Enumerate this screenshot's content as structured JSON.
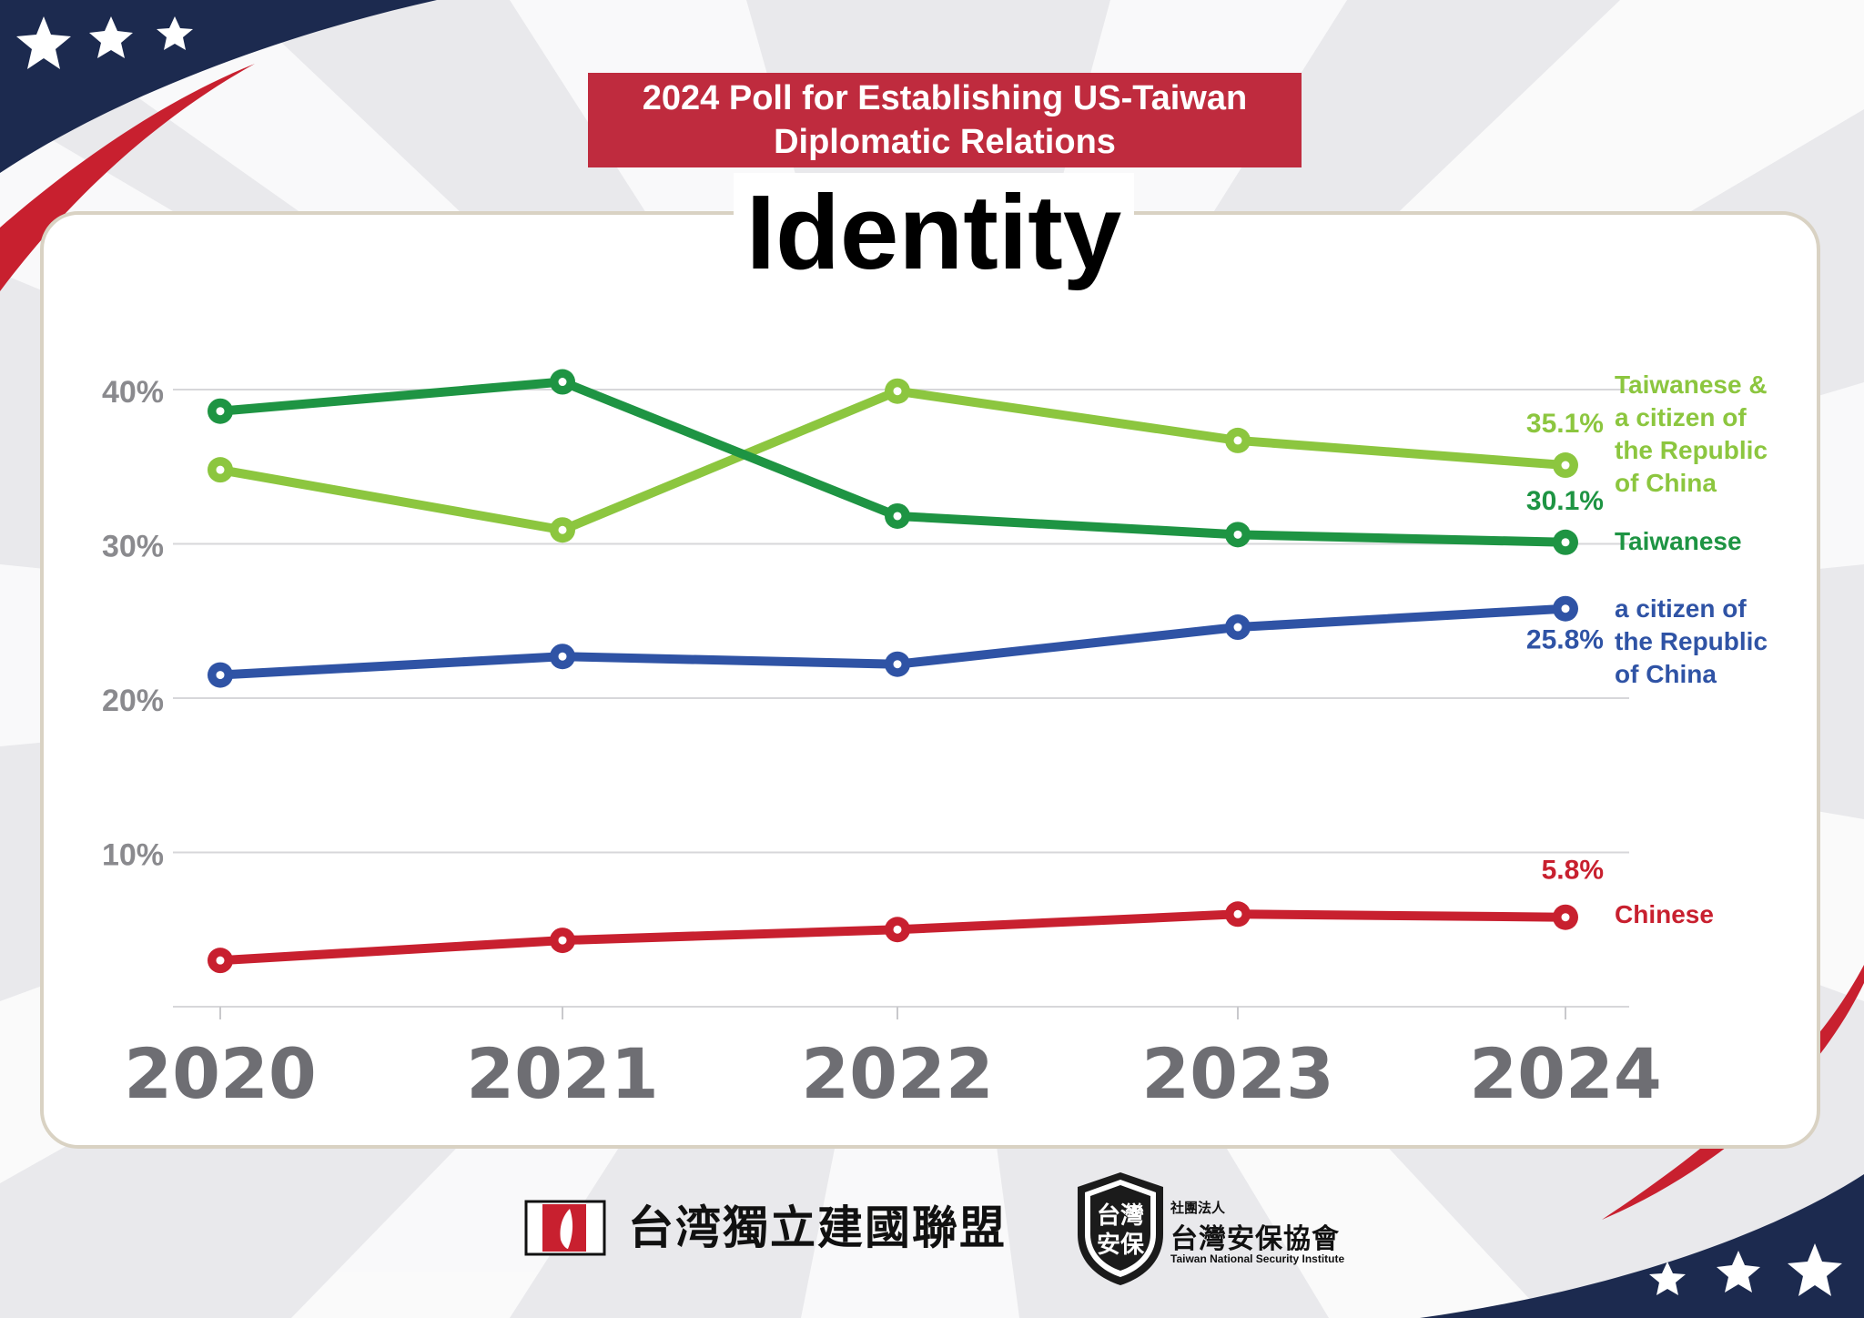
{
  "header": {
    "banner_line1": "2024 Poll for Establishing US-Taiwan",
    "banner_line2": "Diplomatic Relations"
  },
  "chart_data": {
    "type": "line",
    "title": "Identity",
    "x": [
      "2020",
      "2021",
      "2022",
      "2023",
      "2024"
    ],
    "ylim": [
      0,
      40
    ],
    "yticks": [
      "40%",
      "30%",
      "20%",
      "10%"
    ],
    "grid": true,
    "series": [
      {
        "name": "Taiwanese & a citizen of the Republic of China",
        "label_lines": [
          "Taiwanese &",
          "a citizen of",
          "the Republic",
          "of China"
        ],
        "color": "#8cc63f",
        "values": [
          34.8,
          30.9,
          39.9,
          36.7,
          35.1
        ],
        "end_label": "35.1%"
      },
      {
        "name": "Taiwanese",
        "label_lines": [
          "Taiwanese"
        ],
        "color": "#1e9443",
        "values": [
          38.6,
          40.5,
          31.8,
          30.6,
          30.1
        ],
        "end_label": "30.1%"
      },
      {
        "name": "a citizen of the Republic of China",
        "label_lines": [
          "a citizen of",
          "the Republic",
          "of China"
        ],
        "color": "#2f53a5",
        "values": [
          21.5,
          22.7,
          22.2,
          24.6,
          25.8
        ],
        "end_label": "25.8%"
      },
      {
        "name": "Chinese",
        "label_lines": [
          "Chinese"
        ],
        "color": "#c8202f",
        "values": [
          3.0,
          4.3,
          5.0,
          6.0,
          5.8
        ],
        "end_label": "5.8%"
      }
    ]
  },
  "footer": {
    "org1_name": "台湾獨立建國聯盟",
    "org2_small": "社團法人",
    "org2_name": "台灣安保協會",
    "org2_en": "Taiwan National Security Institute",
    "org2_badge_top": "台灣",
    "org2_badge_bottom": "安保"
  },
  "theme": {
    "navy": "#1c2a4f",
    "red": "#c8202f",
    "banner": "#bf2b3e",
    "axis_text": "#8a8a8e",
    "year_text": "#6e6e73"
  }
}
